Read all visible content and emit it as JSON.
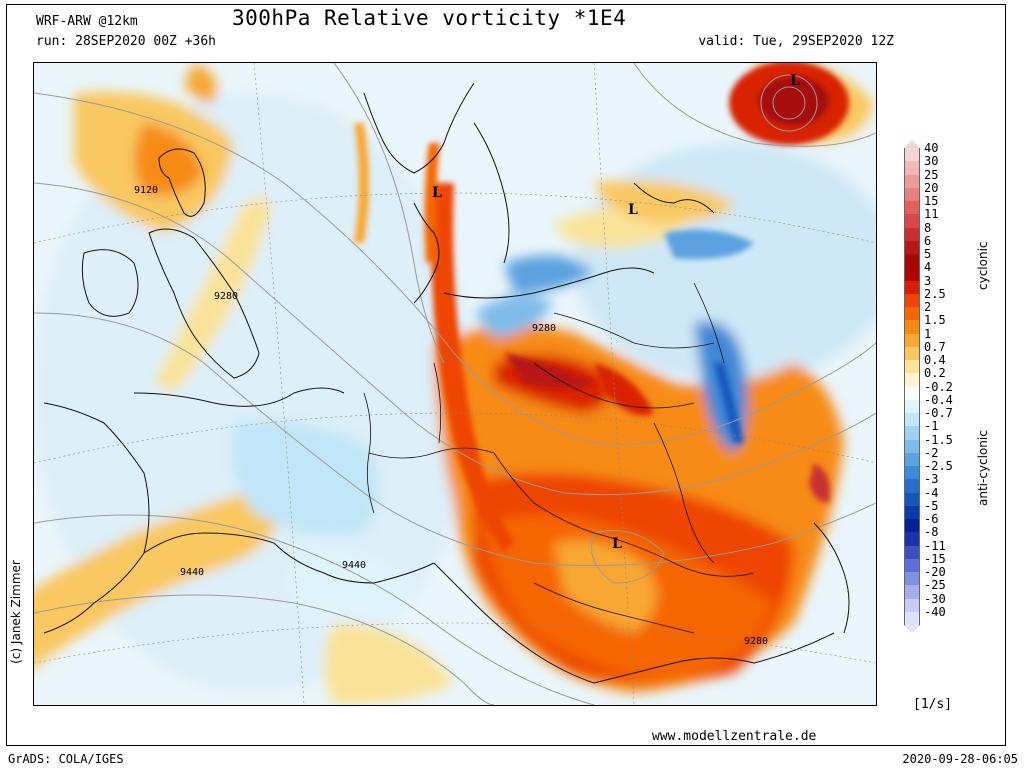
{
  "header": {
    "model": "WRF-ARW @12km",
    "run": "run: 28SEP2020 00Z +36h",
    "title": "300hPa Relative vorticity *1E4",
    "valid": "valid: Tue, 29SEP2020 12Z"
  },
  "map": {
    "contour_labels": [
      "9120",
      "9280",
      "9280",
      "9440",
      "9440",
      "9280"
    ],
    "pressure_marks": [
      "L",
      "L",
      "L",
      "L"
    ]
  },
  "colorbar": {
    "levels": [
      "40",
      "30",
      "25",
      "20",
      "15",
      "11",
      "8",
      "6",
      "5",
      "4",
      "3",
      "2.5",
      "2",
      "1.5",
      "1",
      "0.7",
      "0.4",
      "0.2",
      "-0.2",
      "-0.4",
      "-0.7",
      "-1",
      "-1.5",
      "-2",
      "-2.5",
      "-3",
      "-4",
      "-5",
      "-6",
      "-8",
      "-11",
      "-15",
      "-20",
      "-25",
      "-30",
      "-40"
    ],
    "colors": [
      "#f7d4d4",
      "#f3b7b7",
      "#ee9a9a",
      "#e97f7f",
      "#e06060",
      "#d84848",
      "#c83030",
      "#b81818",
      "#a60808",
      "#b00000",
      "#d82000",
      "#ee4400",
      "#f56600",
      "#f78b16",
      "#f8a733",
      "#f9c860",
      "#fae398",
      "#fdf6d4",
      "#ffffff",
      "#dff3fb",
      "#c0e6f7",
      "#9ed3f1",
      "#7dbce9",
      "#5ba2e0",
      "#3f88d6",
      "#276fca",
      "#1656bc",
      "#0b3cad",
      "#061f93",
      "#2031b0",
      "#3e4fc6",
      "#5f70d6",
      "#8290e0",
      "#a4aeea",
      "#c5cbf3",
      "#e0e3fa"
    ],
    "cyclonic_label": "cyclonic",
    "anticyclonic_label": "anti-cyclonic",
    "units": "[1/s]"
  },
  "footer": {
    "copyright": "(c) Janek Zimmer",
    "website": "www.modellzentrale.de",
    "software": "GrADS: COLA/IGES",
    "timestamp": "2020-09-28-06:05"
  }
}
